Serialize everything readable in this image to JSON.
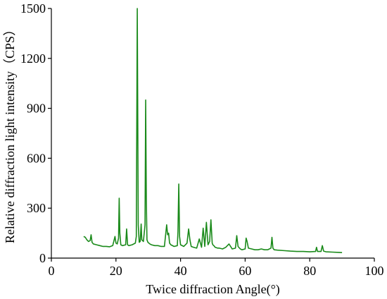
{
  "chart_data": {
    "type": "line",
    "xlabel": "Twice diffraction Angle(°)",
    "ylabel": "Relative diffraction light intensity（CPS）",
    "xlim": [
      0,
      100
    ],
    "ylim": [
      0,
      1500
    ],
    "x_ticks": [
      0,
      20,
      40,
      60,
      80,
      100
    ],
    "y_ticks": [
      0,
      300,
      600,
      900,
      1200,
      1500
    ],
    "grid": false,
    "legend": "none",
    "colors": {
      "series": "#1a8a1a",
      "axis": "#000000"
    },
    "series": [
      {
        "x": [
          10.0,
          10.5,
          11.0,
          11.5,
          12.0,
          12.3,
          12.6,
          13.0,
          14.0,
          15.0,
          16.0,
          17.0,
          18.0,
          19.0,
          19.7,
          20.0,
          20.4,
          20.8,
          21.0,
          21.2,
          21.5,
          22.0,
          23.0,
          23.3,
          23.6,
          24.0,
          25.0,
          26.0,
          26.3,
          26.6,
          26.9,
          27.2,
          27.5,
          27.8,
          28.0,
          28.5,
          29.0,
          29.2,
          29.4,
          29.6,
          29.9,
          30.5,
          31.0,
          32.0,
          33.0,
          34.0,
          35.0,
          35.7,
          36.0,
          36.3,
          36.6,
          37.0,
          38.0,
          39.0,
          39.2,
          39.45,
          39.7,
          40.0,
          41.0,
          42.0,
          42.5,
          42.9,
          43.3,
          44.0,
          45.0,
          45.8,
          46.5,
          47.0,
          47.5,
          48.0,
          48.5,
          49.0,
          49.4,
          49.8,
          50.0,
          50.3,
          50.7,
          51.5,
          52.0,
          53.0,
          54.0,
          55.0,
          56.0,
          57.0,
          57.4,
          57.8,
          58.5,
          59.0,
          60.0,
          60.3,
          60.6,
          61.0,
          62.0,
          63.0,
          64.0,
          65.0,
          66.0,
          67.0,
          68.0,
          68.3,
          68.6,
          69.0,
          70.0,
          72.0,
          74.0,
          76.0,
          78.0,
          80.0,
          81.8,
          82.1,
          82.4,
          83.5,
          83.9,
          84.3,
          85.0,
          87.0,
          89.0,
          90.0
        ],
        "y": [
          130,
          125,
          110,
          100,
          105,
          140,
          95,
          85,
          80,
          75,
          70,
          70,
          68,
          75,
          130,
          90,
          85,
          120,
          360,
          150,
          80,
          75,
          80,
          175,
          80,
          75,
          80,
          90,
          130,
          1500,
          200,
          95,
          100,
          205,
          110,
          100,
          200,
          950,
          350,
          110,
          95,
          85,
          80,
          75,
          75,
          70,
          70,
          200,
          140,
          150,
          90,
          80,
          70,
          75,
          160,
          445,
          130,
          80,
          70,
          90,
          175,
          110,
          70,
          65,
          60,
          115,
          65,
          180,
          70,
          215,
          80,
          100,
          230,
          90,
          80,
          75,
          65,
          60,
          60,
          55,
          65,
          85,
          55,
          60,
          135,
          70,
          55,
          50,
          55,
          120,
          100,
          60,
          55,
          50,
          50,
          55,
          50,
          50,
          60,
          125,
          60,
          50,
          48,
          45,
          42,
          40,
          40,
          38,
          40,
          65,
          40,
          40,
          75,
          42,
          38,
          36,
          34,
          33
        ]
      }
    ]
  }
}
